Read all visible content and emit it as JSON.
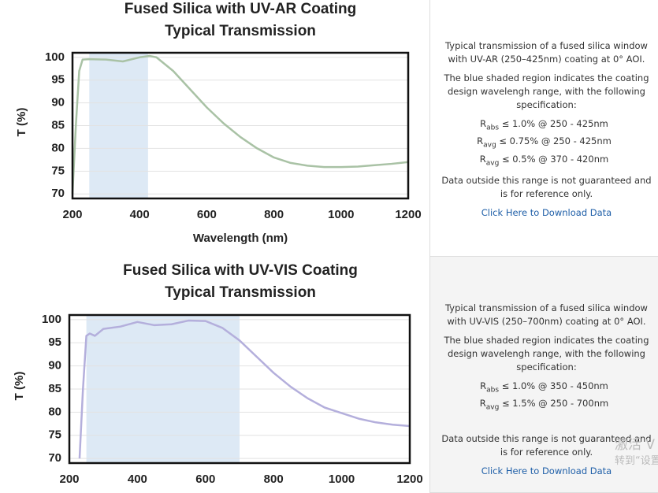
{
  "chart_data": [
    {
      "type": "line",
      "title": "Fused Silica with UV-AR Coating",
      "subtitle": "Typical Transmission",
      "x_label": "Wavelength (nm)",
      "y_label": "T (%)",
      "x": [
        200,
        210,
        220,
        230,
        250,
        300,
        350,
        400,
        430,
        450,
        500,
        550,
        600,
        650,
        700,
        750,
        800,
        850,
        900,
        950,
        1000,
        1050,
        1100,
        1150,
        1200
      ],
      "series": [
        {
          "color": "#a9c2a5",
          "values": [
            70,
            85,
            97,
            99.5,
            99.6,
            99.5,
            99.1,
            100,
            100.3,
            100,
            97,
            93,
            89,
            85.5,
            82.5,
            80,
            78,
            76.8,
            76.2,
            75.9,
            75.9,
            76,
            76.3,
            76.6,
            77
          ]
        }
      ],
      "shaded_range": [
        250,
        425
      ],
      "shade_color": "#dde9f5",
      "xlim": [
        200,
        1200
      ],
      "ylim": [
        69,
        101
      ],
      "xticks": [
        200,
        400,
        600,
        800,
        1000,
        1200
      ],
      "yticks": [
        70,
        75,
        80,
        85,
        90,
        95,
        100
      ],
      "grid": true
    },
    {
      "type": "line",
      "title": "Fused Silica with UV-VIS Coating",
      "subtitle": "Typical Transmission",
      "y_label": "T (%)",
      "x": [
        230,
        240,
        250,
        260,
        275,
        300,
        350,
        400,
        450,
        500,
        550,
        600,
        650,
        700,
        750,
        800,
        850,
        900,
        950,
        1000,
        1050,
        1100,
        1150,
        1200
      ],
      "series": [
        {
          "color": "#b4afdc",
          "values": [
            70,
            85,
            96.5,
            97,
            96.5,
            98,
            98.5,
            99.5,
            98.8,
            99,
            99.8,
            99.7,
            98.2,
            95.5,
            92,
            88.5,
            85.5,
            83,
            81,
            79.8,
            78.6,
            77.8,
            77.3,
            77
          ]
        }
      ],
      "shaded_range": [
        250,
        700
      ],
      "shade_color": "#dde9f5",
      "xlim": [
        200,
        1200
      ],
      "ylim": [
        69,
        101
      ],
      "xticks": [
        200,
        400,
        600,
        800,
        1000,
        1200
      ],
      "yticks": [
        70,
        75,
        80,
        85,
        90,
        95,
        100
      ],
      "grid": true
    }
  ],
  "panels": [
    {
      "description": "Typical transmission of a fused silica window with UV-AR (250–425nm) coating at 0° AOI.",
      "note": "The blue shaded region indicates the coating design wavelengh range, with the following specification:",
      "specs": [
        {
          "symbol": "R",
          "sub": "abs",
          "text": " ≤ 1.0% @ 250 - 425nm"
        },
        {
          "symbol": "R",
          "sub": "avg",
          "text": " ≤ 0.75% @ 250 - 425nm"
        },
        {
          "symbol": "R",
          "sub": "avg",
          "text": " ≤ 0.5% @ 370 - 420nm"
        }
      ],
      "disclaimer": "Data outside this range is not guaranteed and is for reference only.",
      "link": "Click Here to Download Data"
    },
    {
      "description": "Typical transmission of a fused silica window with UV-VIS (250–700nm) coating at 0° AOI.",
      "note": "The blue shaded region indicates the coating design wavelengh range, with the following specification:",
      "specs": [
        {
          "symbol": "R",
          "sub": "abs",
          "text": " ≤ 1.0% @ 350 - 450nm"
        },
        {
          "symbol": "R",
          "sub": "avg",
          "text": " ≤ 1.5% @ 250 - 700nm"
        }
      ],
      "disclaimer": "Data outside this range is not guaranteed and is for reference only.",
      "link": "Click Here to Download Data"
    }
  ],
  "watermark": {
    "line1": "激活 V",
    "line2": "转到“设置"
  }
}
